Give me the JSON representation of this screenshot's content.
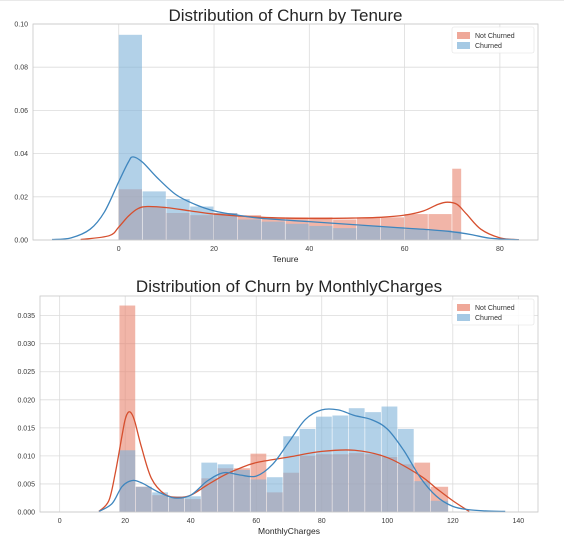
{
  "colors": {
    "not_churned": "#e8836e",
    "churned": "#7fb2d9",
    "not_churned_line": "#d64f2e",
    "churned_line": "#3f86be",
    "grid": "#dcdcdc",
    "frame": "#c8c8c8"
  },
  "chart_data": [
    {
      "type": "histogram-kde",
      "title": "Distribution of Churn by Tenure",
      "xlabel": "Tenure",
      "ylabel": "",
      "xlim": [
        -18,
        88
      ],
      "ylim": [
        0,
        0.1
      ],
      "xticks": [
        "0",
        "20",
        "40",
        "60",
        "80"
      ],
      "xtick_values": [
        0,
        20,
        40,
        60,
        80
      ],
      "yticks": [
        "0.00",
        "0.02",
        "0.04",
        "0.06",
        "0.08",
        "0.10"
      ],
      "ytick_values": [
        0,
        0.02,
        0.04,
        0.06,
        0.08,
        0.1
      ],
      "grid": true,
      "legend": "top-right",
      "bins": [
        0,
        5,
        10,
        15,
        20,
        25,
        30,
        35,
        40,
        45,
        50,
        55,
        60,
        65,
        70,
        72
      ],
      "series": [
        {
          "name": "Not Churned",
          "hist": [
            0.0235,
            0.0155,
            0.0125,
            0.0115,
            0.0125,
            0.0115,
            0.0105,
            0.0105,
            0.0105,
            0.0095,
            0.0105,
            0.0105,
            0.012,
            0.012,
            0.033
          ],
          "kde_x": [
            -8,
            -2,
            0,
            2,
            4,
            6,
            10,
            15,
            20,
            30,
            40,
            50,
            55,
            60,
            64,
            67,
            69,
            71,
            73,
            76,
            80,
            84
          ],
          "kde_y": [
            0.0002,
            0.002,
            0.006,
            0.011,
            0.0145,
            0.0155,
            0.015,
            0.0135,
            0.012,
            0.0105,
            0.01,
            0.0102,
            0.0105,
            0.0115,
            0.0135,
            0.0165,
            0.0175,
            0.0165,
            0.012,
            0.005,
            0.001,
            0.0001
          ]
        },
        {
          "name": "Churned",
          "hist": [
            0.095,
            0.0225,
            0.019,
            0.0155,
            0.0125,
            0.0095,
            0.0085,
            0.0075,
            0.0065,
            0.0055,
            0.0065,
            0.006,
            0.005,
            0.0045,
            0.004
          ],
          "kde_x": [
            -14,
            -10,
            -6,
            -3,
            0,
            2,
            3,
            5,
            8,
            12,
            16,
            20,
            25,
            30,
            40,
            50,
            60,
            65,
            70,
            74,
            78,
            84
          ],
          "kde_y": [
            0.0002,
            0.001,
            0.005,
            0.013,
            0.027,
            0.036,
            0.0385,
            0.036,
            0.029,
            0.021,
            0.0165,
            0.0135,
            0.0115,
            0.01,
            0.0085,
            0.007,
            0.0055,
            0.0048,
            0.0038,
            0.0025,
            0.0008,
            0.0001
          ]
        }
      ]
    },
    {
      "type": "histogram-kde",
      "title": "Distribution of Churn by MonthlyCharges",
      "xlabel": "MonthlyCharges",
      "ylabel": "",
      "xlim": [
        -6,
        146
      ],
      "ylim": [
        0,
        0.0385
      ],
      "xticks": [
        "0",
        "20",
        "40",
        "60",
        "80",
        "100",
        "120",
        "140"
      ],
      "xtick_values": [
        0,
        20,
        40,
        60,
        80,
        100,
        120,
        140
      ],
      "yticks": [
        "0.000",
        "0.005",
        "0.010",
        "0.015",
        "0.020",
        "0.025",
        "0.030",
        "0.035"
      ],
      "ytick_values": [
        0,
        0.005,
        0.01,
        0.015,
        0.02,
        0.025,
        0.03,
        0.035
      ],
      "grid": true,
      "legend": "top-right",
      "bins": [
        18.25,
        23.25,
        28.25,
        33.25,
        38.25,
        43.25,
        48.25,
        53.25,
        58.25,
        63.25,
        68.25,
        73.25,
        78.25,
        83.25,
        88.25,
        93.25,
        98.25,
        103.25,
        108.25,
        113.25,
        118.75
      ],
      "series": [
        {
          "name": "Not Churned",
          "hist": [
            0.0368,
            0.0045,
            0.003,
            0.0025,
            0.0023,
            0.006,
            0.0078,
            0.0078,
            0.0104,
            0.0035,
            0.007,
            0.01,
            0.0103,
            0.0103,
            0.0105,
            0.0103,
            0.0098,
            0.0085,
            0.0088,
            0.0045
          ],
          "kde_x": [
            12,
            15,
            17,
            19,
            20,
            21,
            22,
            23,
            25,
            28,
            32,
            36,
            40,
            45,
            50,
            55,
            60,
            70,
            80,
            90,
            100,
            110,
            115,
            120,
            125
          ],
          "kde_y": [
            0.0001,
            0.002,
            0.007,
            0.0135,
            0.0165,
            0.0178,
            0.0175,
            0.016,
            0.0115,
            0.006,
            0.0032,
            0.0026,
            0.003,
            0.0048,
            0.0065,
            0.0078,
            0.0088,
            0.0098,
            0.0108,
            0.011,
            0.0097,
            0.0065,
            0.0042,
            0.002,
            0.0001
          ]
        },
        {
          "name": "Churned",
          "hist": [
            0.011,
            0.0045,
            0.0035,
            0.0028,
            0.0028,
            0.0088,
            0.0085,
            0.0075,
            0.0058,
            0.0062,
            0.0135,
            0.0148,
            0.017,
            0.0172,
            0.0185,
            0.0178,
            0.0188,
            0.0148,
            0.0055,
            0.002
          ],
          "kde_x": [
            12,
            16,
            19,
            22,
            25,
            30,
            35,
            40,
            45,
            50,
            55,
            60,
            65,
            70,
            75,
            80,
            85,
            90,
            95,
            100,
            105,
            110,
            115,
            120,
            125,
            130,
            136
          ],
          "kde_y": [
            0.0001,
            0.0015,
            0.0045,
            0.0056,
            0.0052,
            0.0036,
            0.0025,
            0.003,
            0.0055,
            0.007,
            0.0066,
            0.0064,
            0.0085,
            0.0125,
            0.0165,
            0.0182,
            0.0182,
            0.0172,
            0.0165,
            0.0148,
            0.011,
            0.0062,
            0.0028,
            0.001,
            0.0004,
            0.0002,
            0.0001
          ]
        }
      ]
    }
  ]
}
